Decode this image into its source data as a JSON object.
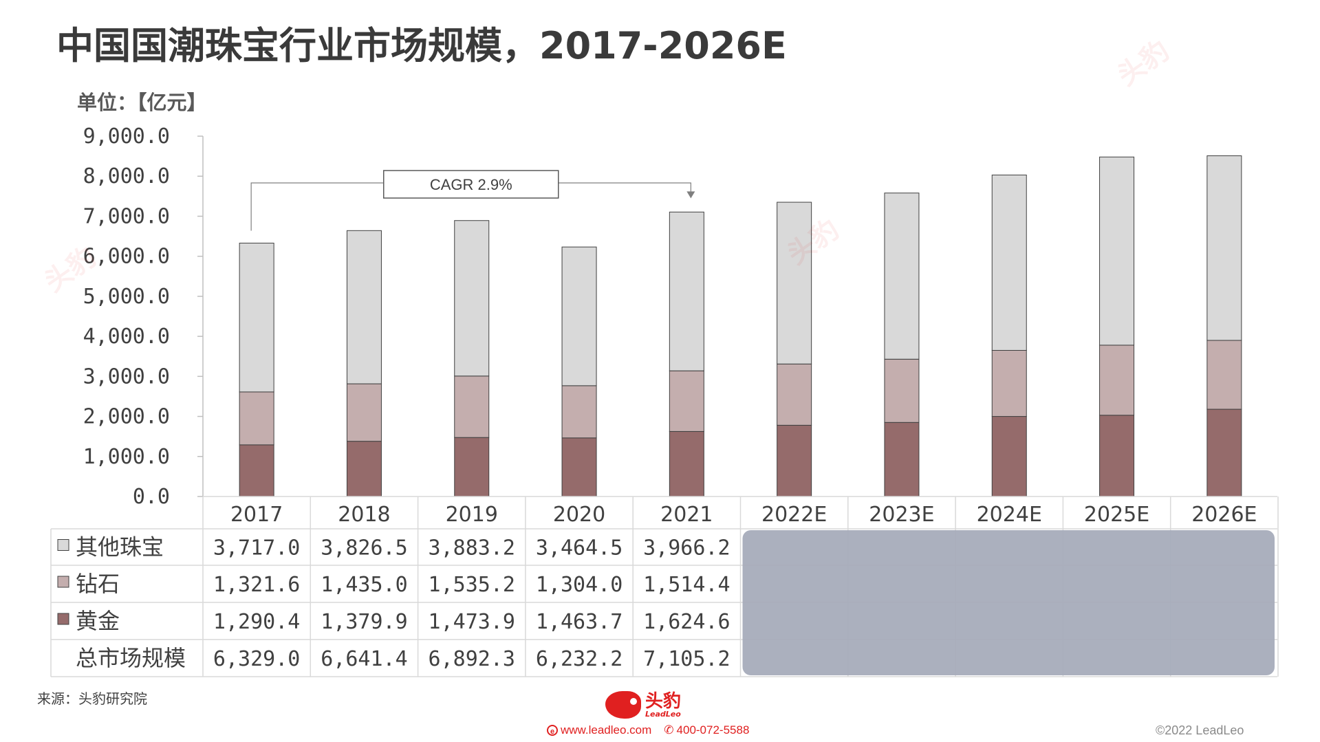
{
  "title": "中国国潮珠宝行业市场规模，2017-2026E",
  "unit_label": "单位：【亿元】",
  "source": "来源：头豹研究院",
  "footer": {
    "logo_cn": "头豹",
    "logo_en": "LeadLeo",
    "website": "www.leadleo.com",
    "phone": "400-072-5588",
    "copyright": "©2022 LeadLeo",
    "watermark": "头豹"
  },
  "colors": {
    "other": "#d9d9d9",
    "diamond": "#c4aeae",
    "gold": "#956b6b",
    "bar_stroke": "#404040",
    "overlay": "#a7acbb",
    "brand": "#e02020"
  },
  "chart_data": {
    "type": "bar",
    "stacked": true,
    "categories": [
      "2017",
      "2018",
      "2019",
      "2020",
      "2021",
      "2022E",
      "2023E",
      "2024E",
      "2025E",
      "2026E"
    ],
    "ylim": [
      0,
      9000
    ],
    "yticks": [
      0,
      1000,
      2000,
      3000,
      4000,
      5000,
      6000,
      7000,
      8000,
      9000
    ],
    "ytick_labels": [
      "0.0",
      "1,000.0",
      "2,000.0",
      "3,000.0",
      "4,000.0",
      "5,000.0",
      "6,000.0",
      "7,000.0",
      "8,000.0",
      "9,000.0"
    ],
    "series": [
      {
        "name": "黄金",
        "color_key": "gold",
        "values": [
          1290.4,
          1379.9,
          1473.9,
          1463.7,
          1624.6,
          1780,
          1850,
          2000,
          2030,
          2180
        ],
        "labels": [
          "1,290.4",
          "1,379.9",
          "1,473.9",
          "1,463.7",
          "1,624.6"
        ]
      },
      {
        "name": "钻石",
        "color_key": "diamond",
        "values": [
          1321.6,
          1435.0,
          1535.2,
          1304.0,
          1514.4,
          1530,
          1580,
          1650,
          1750,
          1720
        ],
        "labels": [
          "1,321.6",
          "1,435.0",
          "1,535.2",
          "1,304.0",
          "1,514.4"
        ]
      },
      {
        "name": "其他珠宝",
        "color_key": "other",
        "values": [
          3717.0,
          3826.5,
          3883.2,
          3464.5,
          3966.2,
          4040,
          4150,
          4380,
          4700,
          4610
        ],
        "labels": [
          "3,717.0",
          "3,826.5",
          "3,883.2",
          "3,464.5",
          "3,966.2"
        ]
      }
    ],
    "total": {
      "name": "总市场规模",
      "values": [
        6329.0,
        6641.4,
        6892.3,
        6232.2,
        7105.2,
        7350,
        7580,
        8030,
        8480,
        8510
      ],
      "labels": [
        "6,329.0",
        "6,641.4",
        "6,892.3",
        "6,232.2",
        "7,105.2"
      ]
    },
    "annotation": {
      "text": "CAGR 2.9%",
      "from_category": "2017",
      "to_category": "2021"
    },
    "grid": false,
    "legend": "table-left"
  }
}
